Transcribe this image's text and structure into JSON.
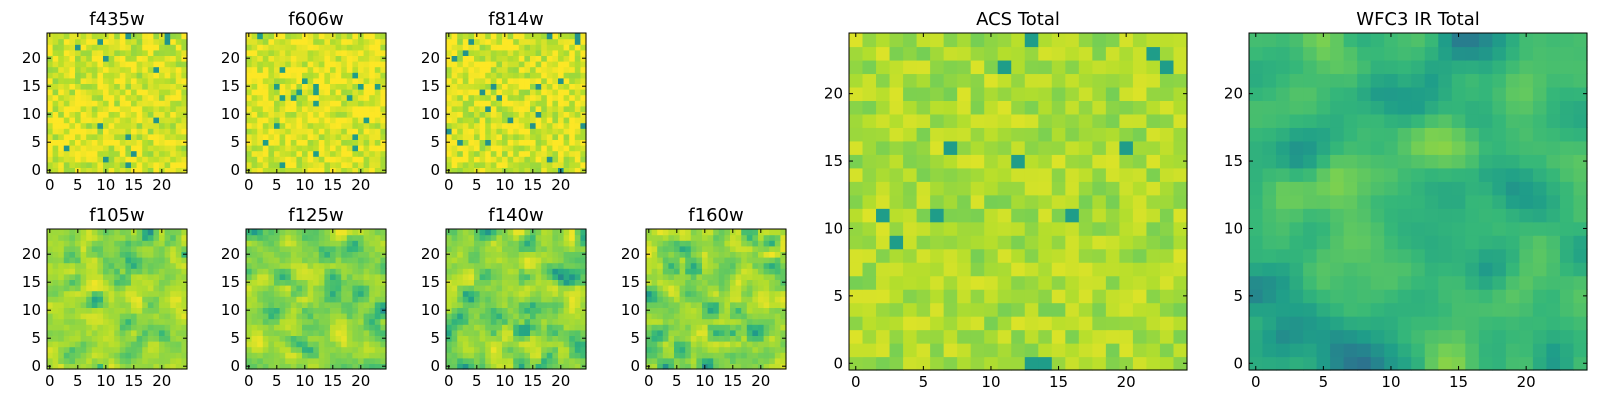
{
  "chart_data": [
    {
      "type": "heatmap",
      "title": "f435w",
      "nx": 25,
      "ny": 25,
      "colormap": "viridis",
      "xticks": [
        0,
        5,
        10,
        15,
        20
      ],
      "yticks": [
        0,
        5,
        10,
        15,
        20
      ],
      "seed": 11,
      "smooth": 0,
      "bright": 0.78,
      "spread": 0.26
    },
    {
      "type": "heatmap",
      "title": "f606w",
      "nx": 25,
      "ny": 25,
      "colormap": "viridis",
      "xticks": [
        0,
        5,
        10,
        15,
        20
      ],
      "yticks": [
        0,
        5,
        10,
        15,
        20
      ],
      "seed": 23,
      "smooth": 0,
      "bright": 0.8,
      "spread": 0.25
    },
    {
      "type": "heatmap",
      "title": "f814w",
      "nx": 25,
      "ny": 25,
      "colormap": "viridis",
      "xticks": [
        0,
        5,
        10,
        15,
        20
      ],
      "yticks": [
        0,
        5,
        10,
        15,
        20
      ],
      "seed": 37,
      "smooth": 0,
      "bright": 0.78,
      "spread": 0.27
    },
    {
      "type": "heatmap",
      "title": "f105w",
      "nx": 25,
      "ny": 25,
      "colormap": "viridis",
      "xticks": [
        0,
        5,
        10,
        15,
        20
      ],
      "yticks": [
        0,
        5,
        10,
        15,
        20
      ],
      "seed": 41,
      "smooth": 1,
      "bright": 0.74,
      "spread": 0.24
    },
    {
      "type": "heatmap",
      "title": "f125w",
      "nx": 25,
      "ny": 25,
      "colormap": "viridis",
      "xticks": [
        0,
        5,
        10,
        15,
        20
      ],
      "yticks": [
        0,
        5,
        10,
        15,
        20
      ],
      "seed": 53,
      "smooth": 1,
      "bright": 0.74,
      "spread": 0.24
    },
    {
      "type": "heatmap",
      "title": "f140w",
      "nx": 25,
      "ny": 25,
      "colormap": "viridis",
      "xticks": [
        0,
        5,
        10,
        15,
        20
      ],
      "yticks": [
        0,
        5,
        10,
        15,
        20
      ],
      "seed": 67,
      "smooth": 1,
      "bright": 0.73,
      "spread": 0.25
    },
    {
      "type": "heatmap",
      "title": "f160w",
      "nx": 25,
      "ny": 25,
      "colormap": "viridis",
      "xticks": [
        0,
        5,
        10,
        15,
        20
      ],
      "yticks": [
        0,
        5,
        10,
        15,
        20
      ],
      "seed": 79,
      "smooth": 1,
      "bright": 0.73,
      "spread": 0.25
    },
    {
      "type": "heatmap",
      "title": "ACS Total",
      "nx": 25,
      "ny": 25,
      "colormap": "viridis",
      "xticks": [
        0,
        5,
        10,
        15,
        20
      ],
      "yticks": [
        0,
        5,
        10,
        15,
        20
      ],
      "seed": 97,
      "smooth": 0,
      "bright": 0.75,
      "spread": 0.2
    },
    {
      "type": "heatmap",
      "title": "WFC3 IR Total",
      "nx": 25,
      "ny": 25,
      "colormap": "viridis",
      "xticks": [
        0,
        5,
        10,
        15,
        20
      ],
      "yticks": [
        0,
        5,
        10,
        15,
        20
      ],
      "seed": 113,
      "smooth": 2,
      "bright": 0.6,
      "spread": 0.22
    }
  ]
}
